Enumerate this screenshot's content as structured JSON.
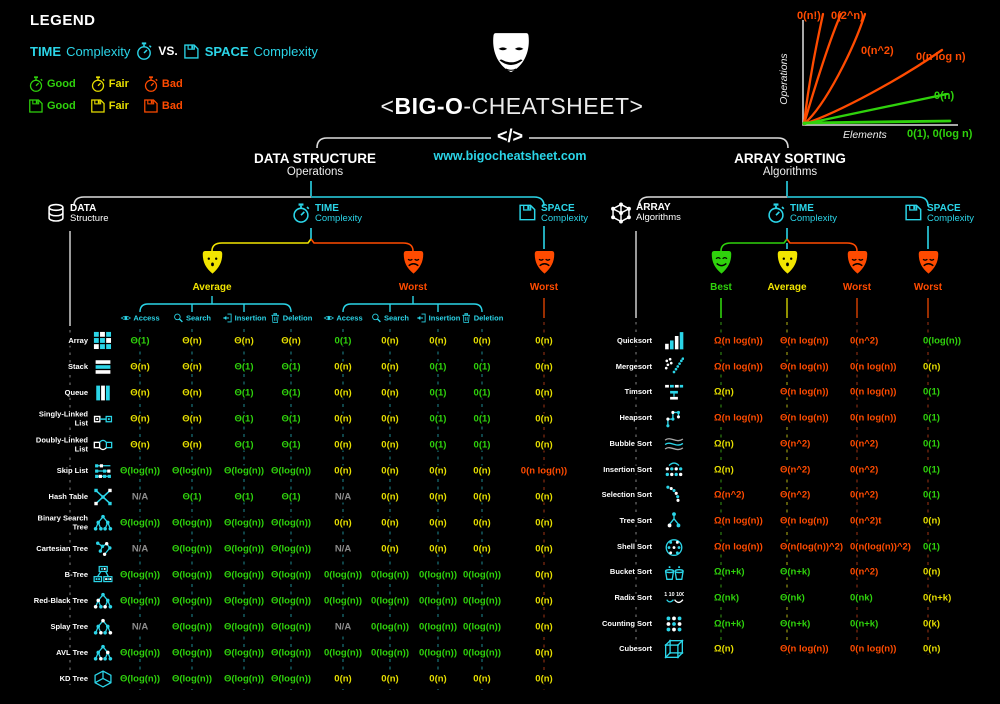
{
  "colors": {
    "cyan": "#2bd5e8",
    "good": "#2fd20c",
    "fair": "#e6de00",
    "bad": "#ff4b00",
    "na": "#8c8c8c",
    "white": "#ffffff"
  },
  "legend": {
    "heading": "LEGEND",
    "time_bold": "TIME",
    "time_rest": "Complexity",
    "vs": "VS.",
    "space_bold": "SPACE",
    "space_rest": "Complexity",
    "time_ratings": [
      {
        "label": "Good",
        "color": "#2fd20c"
      },
      {
        "label": "Fair",
        "color": "#e6de00"
      },
      {
        "label": "Bad",
        "color": "#ff4b00"
      }
    ],
    "space_ratings": [
      {
        "label": "Good",
        "color": "#2fd20c"
      },
      {
        "label": "Fair",
        "color": "#e6de00"
      },
      {
        "label": "Bad",
        "color": "#ff4b00"
      }
    ]
  },
  "header": {
    "title_open": "<",
    "title_big": "BIG-O",
    "title_rest": "-CHEATSHEET>",
    "code_glyph": "</>",
    "url": "www.bigocheatsheet.com"
  },
  "chart_data": {
    "type": "line",
    "title": "",
    "xlabel": "Elements",
    "ylabel": "Operations",
    "legend_position": "inline-labels",
    "grid": false,
    "series": [
      {
        "name": "0(n!)",
        "color": "#ff4b00",
        "growth": "factorial"
      },
      {
        "name": "0(2^n)",
        "color": "#ff4b00",
        "growth": "exponential"
      },
      {
        "name": "0(n^2)",
        "color": "#ff4b00",
        "growth": "quadratic"
      },
      {
        "name": "0(n log n)",
        "color": "#ff4b00",
        "growth": "linearithmic"
      },
      {
        "name": "0(n)",
        "color": "#2fd20c",
        "growth": "linear"
      },
      {
        "name": "0(1), 0(log n)",
        "color": "#2fd20c",
        "growth": "constant"
      }
    ]
  },
  "left": {
    "title": "DATA STRUCTURE",
    "subtitle": "Operations",
    "root": {
      "label": "DATA",
      "sub": "Structure"
    },
    "time": {
      "label": "TIME",
      "sub": "Complexity"
    },
    "space": {
      "label": "SPACE",
      "sub": "Complexity"
    },
    "time_masks": [
      {
        "label": "Average",
        "mood": "neutral",
        "color": "#f2e500"
      },
      {
        "label": "Worst",
        "mood": "sad",
        "color": "#ff4b00"
      }
    ],
    "space_mask": {
      "label": "Worst",
      "mood": "sad",
      "color": "#ff4b00"
    },
    "operations": [
      {
        "label": "Access",
        "icon": "eye"
      },
      {
        "label": "Search",
        "icon": "magnifier"
      },
      {
        "label": "Insertion",
        "icon": "insert"
      },
      {
        "label": "Deletion",
        "icon": "trash"
      }
    ],
    "rows": [
      {
        "name": "Array",
        "icon": "array",
        "average": [
          [
            "Θ(1)",
            "g"
          ],
          [
            "Θ(n)",
            "f"
          ],
          [
            "Θ(n)",
            "f"
          ],
          [
            "Θ(n)",
            "f"
          ]
        ],
        "worst": [
          [
            "0(1)",
            "g"
          ],
          [
            "0(n)",
            "f"
          ],
          [
            "0(n)",
            "f"
          ],
          [
            "0(n)",
            "f"
          ]
        ],
        "space": [
          "0(n)",
          "f"
        ]
      },
      {
        "name": "Stack",
        "icon": "stack",
        "average": [
          [
            "Θ(n)",
            "f"
          ],
          [
            "Θ(n)",
            "f"
          ],
          [
            "Θ(1)",
            "g"
          ],
          [
            "Θ(1)",
            "g"
          ]
        ],
        "worst": [
          [
            "0(n)",
            "f"
          ],
          [
            "0(n)",
            "f"
          ],
          [
            "0(1)",
            "g"
          ],
          [
            "0(1)",
            "g"
          ]
        ],
        "space": [
          "0(n)",
          "f"
        ]
      },
      {
        "name": "Queue",
        "icon": "queue",
        "average": [
          [
            "Θ(n)",
            "f"
          ],
          [
            "Θ(n)",
            "f"
          ],
          [
            "Θ(1)",
            "g"
          ],
          [
            "Θ(1)",
            "g"
          ]
        ],
        "worst": [
          [
            "0(n)",
            "f"
          ],
          [
            "0(n)",
            "f"
          ],
          [
            "0(1)",
            "g"
          ],
          [
            "0(1)",
            "g"
          ]
        ],
        "space": [
          "0(n)",
          "f"
        ]
      },
      {
        "name": "Singly-Linked List",
        "icon": "sll",
        "average": [
          [
            "Θ(n)",
            "f"
          ],
          [
            "Θ(n)",
            "f"
          ],
          [
            "Θ(1)",
            "g"
          ],
          [
            "Θ(1)",
            "g"
          ]
        ],
        "worst": [
          [
            "0(n)",
            "f"
          ],
          [
            "0(n)",
            "f"
          ],
          [
            "0(1)",
            "g"
          ],
          [
            "0(1)",
            "g"
          ]
        ],
        "space": [
          "0(n)",
          "f"
        ]
      },
      {
        "name": "Doubly-Linked List",
        "icon": "dll",
        "average": [
          [
            "Θ(n)",
            "f"
          ],
          [
            "Θ(n)",
            "f"
          ],
          [
            "Θ(1)",
            "g"
          ],
          [
            "Θ(1)",
            "g"
          ]
        ],
        "worst": [
          [
            "0(n)",
            "f"
          ],
          [
            "0(n)",
            "f"
          ],
          [
            "0(1)",
            "g"
          ],
          [
            "0(1)",
            "g"
          ]
        ],
        "space": [
          "0(n)",
          "f"
        ]
      },
      {
        "name": "Skip List",
        "icon": "skiplist",
        "average": [
          [
            "Θ(log(n))",
            "g"
          ],
          [
            "Θ(log(n))",
            "g"
          ],
          [
            "Θ(log(n))",
            "g"
          ],
          [
            "Θ(log(n))",
            "g"
          ]
        ],
        "worst": [
          [
            "0(n)",
            "f"
          ],
          [
            "0(n)",
            "f"
          ],
          [
            "0(n)",
            "f"
          ],
          [
            "0(n)",
            "f"
          ]
        ],
        "space": [
          "0(n log(n))",
          "b"
        ]
      },
      {
        "name": "Hash Table",
        "icon": "hash",
        "average": [
          [
            "N/A",
            "na"
          ],
          [
            "Θ(1)",
            "g"
          ],
          [
            "Θ(1)",
            "g"
          ],
          [
            "Θ(1)",
            "g"
          ]
        ],
        "worst": [
          [
            "N/A",
            "na"
          ],
          [
            "0(n)",
            "f"
          ],
          [
            "0(n)",
            "f"
          ],
          [
            "0(n)",
            "f"
          ]
        ],
        "space": [
          "0(n)",
          "f"
        ]
      },
      {
        "name": "Binary Search Tree",
        "icon": "tree",
        "average": [
          [
            "Θ(log(n))",
            "g"
          ],
          [
            "Θ(log(n))",
            "g"
          ],
          [
            "Θ(log(n))",
            "g"
          ],
          [
            "Θ(log(n))",
            "g"
          ]
        ],
        "worst": [
          [
            "0(n)",
            "f"
          ],
          [
            "0(n)",
            "f"
          ],
          [
            "0(n)",
            "f"
          ],
          [
            "0(n)",
            "f"
          ]
        ],
        "space": [
          "0(n)",
          "f"
        ]
      },
      {
        "name": "Cartesian Tree",
        "icon": "cartesian",
        "average": [
          [
            "N/A",
            "na"
          ],
          [
            "Θ(log(n))",
            "g"
          ],
          [
            "Θ(log(n))",
            "g"
          ],
          [
            "Θ(log(n))",
            "g"
          ]
        ],
        "worst": [
          [
            "N/A",
            "na"
          ],
          [
            "0(n)",
            "f"
          ],
          [
            "0(n)",
            "f"
          ],
          [
            "0(n)",
            "f"
          ]
        ],
        "space": [
          "0(n)",
          "f"
        ]
      },
      {
        "name": "B-Tree",
        "icon": "btree",
        "average": [
          [
            "Θ(log(n))",
            "g"
          ],
          [
            "Θ(log(n))",
            "g"
          ],
          [
            "Θ(log(n))",
            "g"
          ],
          [
            "Θ(log(n))",
            "g"
          ]
        ],
        "worst": [
          [
            "0(log(n))",
            "g"
          ],
          [
            "0(log(n))",
            "g"
          ],
          [
            "0(log(n))",
            "g"
          ],
          [
            "0(log(n))",
            "g"
          ]
        ],
        "space": [
          "0(n)",
          "f"
        ]
      },
      {
        "name": "Red-Black Tree",
        "icon": "rbtree",
        "average": [
          [
            "Θ(log(n))",
            "g"
          ],
          [
            "Θ(log(n))",
            "g"
          ],
          [
            "Θ(log(n))",
            "g"
          ],
          [
            "Θ(log(n))",
            "g"
          ]
        ],
        "worst": [
          [
            "0(log(n))",
            "g"
          ],
          [
            "0(log(n))",
            "g"
          ],
          [
            "0(log(n))",
            "g"
          ],
          [
            "0(log(n))",
            "g"
          ]
        ],
        "space": [
          "0(n)",
          "f"
        ]
      },
      {
        "name": "Splay Tree",
        "icon": "splay",
        "average": [
          [
            "N/A",
            "na"
          ],
          [
            "Θ(log(n))",
            "g"
          ],
          [
            "Θ(log(n))",
            "g"
          ],
          [
            "Θ(log(n))",
            "g"
          ]
        ],
        "worst": [
          [
            "N/A",
            "na"
          ],
          [
            "0(log(n))",
            "g"
          ],
          [
            "0(log(n))",
            "g"
          ],
          [
            "0(log(n))",
            "g"
          ]
        ],
        "space": [
          "0(n)",
          "f"
        ]
      },
      {
        "name": "AVL Tree",
        "icon": "avl",
        "average": [
          [
            "Θ(log(n))",
            "g"
          ],
          [
            "Θ(log(n))",
            "g"
          ],
          [
            "Θ(log(n))",
            "g"
          ],
          [
            "Θ(log(n))",
            "g"
          ]
        ],
        "worst": [
          [
            "0(log(n))",
            "g"
          ],
          [
            "0(log(n))",
            "g"
          ],
          [
            "0(log(n))",
            "g"
          ],
          [
            "0(log(n))",
            "g"
          ]
        ],
        "space": [
          "0(n)",
          "f"
        ]
      },
      {
        "name": "KD Tree",
        "icon": "kdtree",
        "average": [
          [
            "Θ(log(n))",
            "g"
          ],
          [
            "Θ(log(n))",
            "g"
          ],
          [
            "Θ(log(n))",
            "g"
          ],
          [
            "Θ(log(n))",
            "g"
          ]
        ],
        "worst": [
          [
            "0(n)",
            "f"
          ],
          [
            "0(n)",
            "f"
          ],
          [
            "0(n)",
            "f"
          ],
          [
            "0(n)",
            "f"
          ]
        ],
        "space": [
          "0(n)",
          "f"
        ]
      }
    ]
  },
  "right": {
    "title": "ARRAY SORTING",
    "subtitle": "Algorithms",
    "root": {
      "label": "ARRAY",
      "sub": "Algorithms"
    },
    "time": {
      "label": "TIME",
      "sub": "Complexity"
    },
    "space": {
      "label": "SPACE",
      "sub": "Complexity"
    },
    "time_masks": [
      {
        "label": "Best",
        "mood": "happy",
        "color": "#2fd20c"
      },
      {
        "label": "Average",
        "mood": "neutral",
        "color": "#f2e500"
      },
      {
        "label": "Worst",
        "mood": "sad",
        "color": "#ff4b00"
      }
    ],
    "space_mask": {
      "label": "Worst",
      "mood": "sad",
      "color": "#ff4b00"
    },
    "rows": [
      {
        "name": "Quicksort",
        "icon": "quicksort",
        "best": [
          "Ω(n log(n))",
          "b"
        ],
        "average": [
          "Θ(n log(n))",
          "b"
        ],
        "worst": [
          "0(n^2)",
          "b"
        ],
        "space": [
          "0(log(n))",
          "g"
        ]
      },
      {
        "name": "Mergesort",
        "icon": "mergesort",
        "best": [
          "Ω(n log(n))",
          "b"
        ],
        "average": [
          "Θ(n log(n))",
          "b"
        ],
        "worst": [
          "0(n log(n))",
          "b"
        ],
        "space": [
          "0(n)",
          "f"
        ]
      },
      {
        "name": "Timsort",
        "icon": "timsort",
        "best": [
          "Ω(n)",
          "f"
        ],
        "average": [
          "Θ(n log(n))",
          "b"
        ],
        "worst": [
          "0(n log(n))",
          "b"
        ],
        "space": [
          "0(1)",
          "g"
        ]
      },
      {
        "name": "Heapsort",
        "icon": "heapsort",
        "best": [
          "Ω(n log(n))",
          "b"
        ],
        "average": [
          "Θ(n log(n))",
          "b"
        ],
        "worst": [
          "0(n log(n))",
          "b"
        ],
        "space": [
          "0(1)",
          "g"
        ]
      },
      {
        "name": "Bubble Sort",
        "icon": "bubble",
        "best": [
          "Ω(n)",
          "f"
        ],
        "average": [
          "Θ(n^2)",
          "b"
        ],
        "worst": [
          "0(n^2)",
          "b"
        ],
        "space": [
          "0(1)",
          "g"
        ]
      },
      {
        "name": "Insertion Sort",
        "icon": "insertionsort",
        "best": [
          "Ω(n)",
          "f"
        ],
        "average": [
          "Θ(n^2)",
          "b"
        ],
        "worst": [
          "0(n^2)",
          "b"
        ],
        "space": [
          "0(1)",
          "g"
        ]
      },
      {
        "name": "Selection Sort",
        "icon": "selectionsort",
        "best": [
          "Ω(n^2)",
          "b"
        ],
        "average": [
          "Θ(n^2)",
          "b"
        ],
        "worst": [
          "0(n^2)",
          "b"
        ],
        "space": [
          "0(1)",
          "g"
        ]
      },
      {
        "name": "Tree Sort",
        "icon": "treesort",
        "best": [
          "Ω(n log(n))",
          "b"
        ],
        "average": [
          "Θ(n log(n))",
          "b"
        ],
        "worst": [
          "0(n^2)t",
          "b"
        ],
        "space": [
          "0(n)",
          "f"
        ]
      },
      {
        "name": "Shell Sort",
        "icon": "shellsort",
        "best": [
          "Ω(n log(n))",
          "b"
        ],
        "average": [
          "Θ(n(log(n))^2)",
          "b"
        ],
        "worst": [
          "0(n(log(n))^2)",
          "b"
        ],
        "space": [
          "0(1)",
          "g"
        ]
      },
      {
        "name": "Bucket Sort",
        "icon": "bucketsort",
        "best": [
          "Ω(n+k)",
          "g"
        ],
        "average": [
          "Θ(n+k)",
          "g"
        ],
        "worst": [
          "0(n^2)",
          "b"
        ],
        "space": [
          "0(n)",
          "f"
        ]
      },
      {
        "name": "Radix Sort",
        "icon": "radixsort",
        "best": [
          "Ω(nk)",
          "g"
        ],
        "average": [
          "Θ(nk)",
          "g"
        ],
        "worst": [
          "0(nk)",
          "g"
        ],
        "space": [
          "0(n+k)",
          "f"
        ]
      },
      {
        "name": "Counting Sort",
        "icon": "countingsort",
        "best": [
          "Ω(n+k)",
          "g"
        ],
        "average": [
          "Θ(n+k)",
          "g"
        ],
        "worst": [
          "0(n+k)",
          "g"
        ],
        "space": [
          "0(k)",
          "f"
        ]
      },
      {
        "name": "Cubesort",
        "icon": "cubesort",
        "best": [
          "Ω(n)",
          "f"
        ],
        "average": [
          "Θ(n log(n))",
          "b"
        ],
        "worst": [
          "0(n log(n))",
          "b"
        ],
        "space": [
          "0(n)",
          "f"
        ]
      }
    ]
  }
}
